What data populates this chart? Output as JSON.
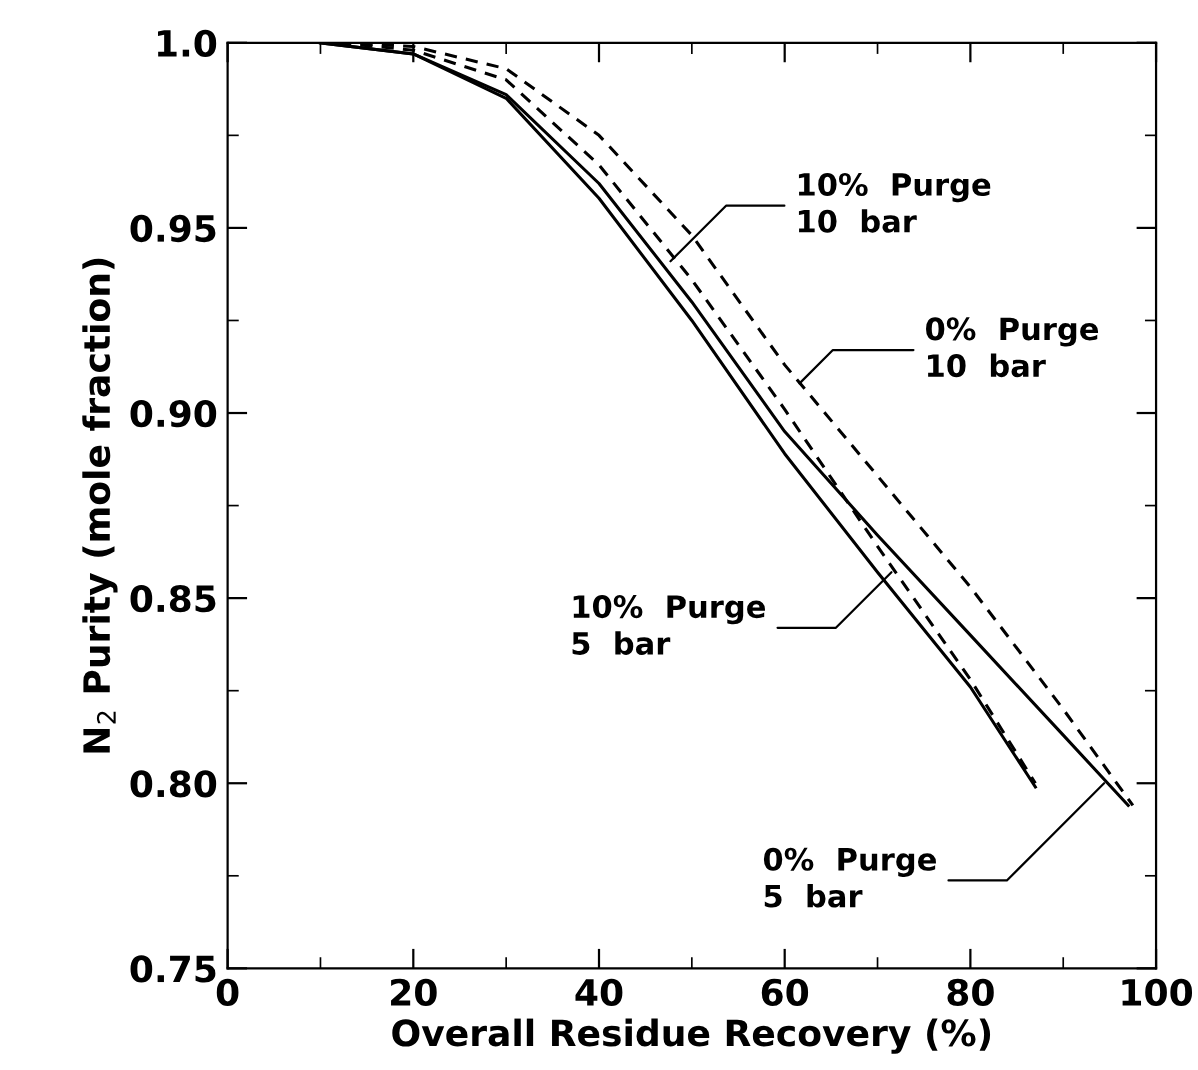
{
  "chart_data": {
    "type": "line",
    "xlabel": "Overall Residue Recovery (%)",
    "ylabel": "N$_{2}$ Purity (mole fraction)",
    "xlim": [
      0,
      100
    ],
    "ylim": [
      0.75,
      1.0
    ],
    "xticks": [
      0,
      20,
      40,
      60,
      80,
      100
    ],
    "yticks": [
      0.75,
      {
        "value": 0.8,
        "label": "0.80"
      },
      0.85,
      {
        "value": 0.9,
        "label": "0.90"
      },
      0.95,
      {
        "value": 1.0,
        "label": "1.0"
      }
    ],
    "grid": false,
    "legend": false,
    "marker": "none",
    "series": [
      {
        "color": "#000000",
        "line_style": "solid",
        "x": [
          10,
          20,
          30,
          40,
          50,
          60,
          70,
          80,
          87
        ],
        "values": [
          1.0,
          0.997,
          0.985,
          0.958,
          0.925,
          0.889,
          0.857,
          0.826,
          0.799
        ]
      },
      {
        "color": "#000000",
        "line_style": "solid",
        "x": [
          10,
          20,
          30,
          40,
          50,
          60,
          70,
          80,
          90,
          97
        ],
        "values": [
          1.0,
          0.997,
          0.986,
          0.962,
          0.93,
          0.895,
          0.867,
          0.84,
          0.813,
          0.794
        ]
      },
      {
        "color": "#000000",
        "line_style": "dashed",
        "x": [
          12,
          20,
          30,
          40,
          50,
          60,
          70,
          80,
          87
        ],
        "values": [
          1.0,
          0.998,
          0.99,
          0.967,
          0.936,
          0.901,
          0.864,
          0.828,
          0.8
        ]
      },
      {
        "color": "#000000",
        "line_style": "dashed",
        "x": [
          12,
          20,
          30,
          40,
          50,
          60,
          70,
          80,
          90,
          97.5
        ],
        "values": [
          1.0,
          0.999,
          0.993,
          0.975,
          0.948,
          0.913,
          0.883,
          0.853,
          0.82,
          0.794
        ]
      }
    ],
    "annotations": [
      {
        "text": "10%  Purge\n10  bar",
        "x": 47.7,
        "y": 0.941
      },
      {
        "text": "0%  Purge\n10  bar",
        "x": 61.6,
        "y": 0.908
      },
      {
        "text": "10%  Purge\n5  bar",
        "x": 71.5,
        "y": 0.857
      },
      {
        "text": "0%  Purge\n5  bar",
        "x": 94.4,
        "y": 0.8
      }
    ]
  }
}
